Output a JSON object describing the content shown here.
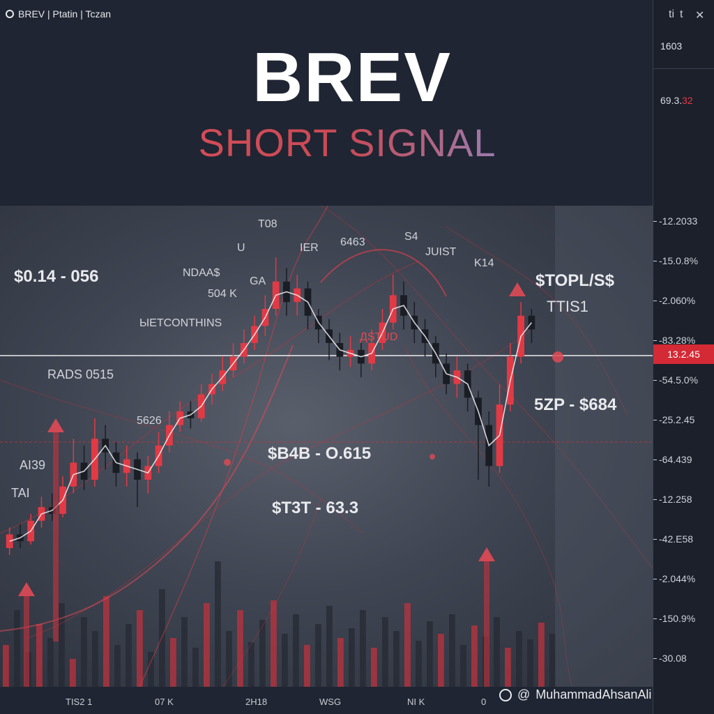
{
  "header": {
    "breadcrumb": "BREV | Ptatin | Tczan",
    "title": "BREV",
    "subtitle": "SHORT SIGNAL"
  },
  "right_panel": {
    "controls": [
      "ti",
      "t",
      "✕"
    ],
    "ticker_value": "1603",
    "ticker_change_prefix": "69.3.",
    "ticker_change_suffix": "32"
  },
  "annotations": {
    "left_range": "$0.14 - 056",
    "stop_label": "$TOPL/S$",
    "stop_sub": "TTIS1",
    "zone_label": "5ZP - $684",
    "mid_label": "$B4B - O.615",
    "low_label": "$T3T - 63.3",
    "rads": "RADS 0515",
    "ndaas": "NDAA$",
    "s04k": "504 K",
    "ga": "GA",
    "metconth": "ЫETCONTHINS",
    "t108": "T08",
    "ier": "IER",
    "g463": "6463",
    "s4": "S4",
    "juist": "JUIST",
    "k14": "K14",
    "s626": "5626",
    "ai39": "AI39",
    "tai": "TAI",
    "red_ds": "ДSTUD",
    "u": "U"
  },
  "price_axis": {
    "ticks": [
      "-12.2033",
      "-15.0.8%",
      "-2.060%",
      "-83.28%",
      "-54.5.0%",
      "-25.2.45",
      "-64.439",
      "-12.258",
      "-42.E58",
      "-2.044%",
      "-150.9%",
      "-30.08"
    ],
    "current": "13.2.45"
  },
  "time_axis": {
    "ticks": [
      "TIS2 1",
      "07 K",
      "2H18",
      "WSG",
      "NI K",
      "0"
    ]
  },
  "watermark": {
    "symbol": "@",
    "author": "MuhammadAhsanAli"
  },
  "colors": {
    "up": "#e23a45",
    "down": "#1a1d24",
    "accent": "#d32a35",
    "background": "#1f2532"
  },
  "chart_data": {
    "type": "candlestick",
    "title": "BREV",
    "subtitle": "SHORT SIGNAL",
    "current_price": "13.2.45",
    "x_labels": [
      "TIS2 1",
      "07 K",
      "2H18",
      "WSG",
      "NI K"
    ],
    "candles": [
      {
        "o": 0.1,
        "c": 0.14,
        "h": 0.16,
        "l": 0.08
      },
      {
        "o": 0.14,
        "c": 0.12,
        "h": 0.17,
        "l": 0.1
      },
      {
        "o": 0.12,
        "c": 0.18,
        "h": 0.2,
        "l": 0.11
      },
      {
        "o": 0.18,
        "c": 0.22,
        "h": 0.25,
        "l": 0.16
      },
      {
        "o": 0.22,
        "c": 0.2,
        "h": 0.26,
        "l": 0.18
      },
      {
        "o": 0.2,
        "c": 0.28,
        "h": 0.31,
        "l": 0.19
      },
      {
        "o": 0.28,
        "c": 0.35,
        "h": 0.42,
        "l": 0.26
      },
      {
        "o": 0.35,
        "c": 0.3,
        "h": 0.4,
        "l": 0.27
      },
      {
        "o": 0.3,
        "c": 0.42,
        "h": 0.48,
        "l": 0.28
      },
      {
        "o": 0.42,
        "c": 0.38,
        "h": 0.46,
        "l": 0.33
      },
      {
        "o": 0.38,
        "c": 0.32,
        "h": 0.41,
        "l": 0.28
      },
      {
        "o": 0.32,
        "c": 0.36,
        "h": 0.4,
        "l": 0.28
      },
      {
        "o": 0.36,
        "c": 0.3,
        "h": 0.38,
        "l": 0.22
      },
      {
        "o": 0.3,
        "c": 0.34,
        "h": 0.37,
        "l": 0.26
      },
      {
        "o": 0.34,
        "c": 0.4,
        "h": 0.44,
        "l": 0.32
      },
      {
        "o": 0.4,
        "c": 0.46,
        "h": 0.5,
        "l": 0.38
      },
      {
        "o": 0.46,
        "c": 0.5,
        "h": 0.53,
        "l": 0.44
      },
      {
        "o": 0.5,
        "c": 0.48,
        "h": 0.53,
        "l": 0.45
      },
      {
        "o": 0.48,
        "c": 0.55,
        "h": 0.58,
        "l": 0.47
      },
      {
        "o": 0.55,
        "c": 0.58,
        "h": 0.61,
        "l": 0.52
      },
      {
        "o": 0.58,
        "c": 0.62,
        "h": 0.66,
        "l": 0.56
      },
      {
        "o": 0.62,
        "c": 0.66,
        "h": 0.7,
        "l": 0.6
      },
      {
        "o": 0.66,
        "c": 0.7,
        "h": 0.74,
        "l": 0.64
      },
      {
        "o": 0.7,
        "c": 0.75,
        "h": 0.78,
        "l": 0.68
      },
      {
        "o": 0.75,
        "c": 0.8,
        "h": 0.84,
        "l": 0.72
      },
      {
        "o": 0.8,
        "c": 0.88,
        "h": 0.95,
        "l": 0.78
      },
      {
        "o": 0.88,
        "c": 0.82,
        "h": 0.92,
        "l": 0.78
      },
      {
        "o": 0.82,
        "c": 0.86,
        "h": 0.9,
        "l": 0.78
      },
      {
        "o": 0.86,
        "c": 0.78,
        "h": 0.88,
        "l": 0.74
      },
      {
        "o": 0.78,
        "c": 0.74,
        "h": 0.8,
        "l": 0.7
      },
      {
        "o": 0.74,
        "c": 0.7,
        "h": 0.77,
        "l": 0.65
      },
      {
        "o": 0.7,
        "c": 0.66,
        "h": 0.73,
        "l": 0.62
      },
      {
        "o": 0.66,
        "c": 0.68,
        "h": 0.72,
        "l": 0.63
      },
      {
        "o": 0.68,
        "c": 0.64,
        "h": 0.7,
        "l": 0.6
      },
      {
        "o": 0.64,
        "c": 0.7,
        "h": 0.74,
        "l": 0.62
      },
      {
        "o": 0.7,
        "c": 0.76,
        "h": 0.8,
        "l": 0.68
      },
      {
        "o": 0.76,
        "c": 0.84,
        "h": 0.9,
        "l": 0.74
      },
      {
        "o": 0.84,
        "c": 0.78,
        "h": 0.88,
        "l": 0.74
      },
      {
        "o": 0.78,
        "c": 0.74,
        "h": 0.82,
        "l": 0.7
      },
      {
        "o": 0.74,
        "c": 0.7,
        "h": 0.77,
        "l": 0.66
      },
      {
        "o": 0.7,
        "c": 0.64,
        "h": 0.72,
        "l": 0.6
      },
      {
        "o": 0.64,
        "c": 0.58,
        "h": 0.67,
        "l": 0.55
      },
      {
        "o": 0.58,
        "c": 0.62,
        "h": 0.66,
        "l": 0.54
      },
      {
        "o": 0.62,
        "c": 0.54,
        "h": 0.64,
        "l": 0.5
      },
      {
        "o": 0.54,
        "c": 0.46,
        "h": 0.56,
        "l": 0.3
      },
      {
        "o": 0.46,
        "c": 0.34,
        "h": 0.5,
        "l": 0.28
      },
      {
        "o": 0.34,
        "c": 0.52,
        "h": 0.58,
        "l": 0.32
      },
      {
        "o": 0.52,
        "c": 0.66,
        "h": 0.7,
        "l": 0.5
      },
      {
        "o": 0.66,
        "c": 0.78,
        "h": 0.82,
        "l": 0.64
      },
      {
        "o": 0.78,
        "c": 0.74,
        "h": 0.8,
        "l": 0.7
      }
    ],
    "volumes": [
      0.3,
      0.55,
      0.25,
      0.45,
      0.35,
      0.6,
      0.2,
      0.5,
      0.4,
      0.65,
      0.3,
      0.45,
      0.55,
      0.25,
      0.7,
      0.35,
      0.5,
      0.28,
      0.6,
      0.9,
      0.4,
      0.55,
      0.32,
      0.48,
      0.62,
      0.38,
      0.52,
      0.3,
      0.45,
      0.58,
      0.35,
      0.42,
      0.55,
      0.28,
      0.5,
      0.4,
      0.6,
      0.33,
      0.47,
      0.38,
      0.52,
      0.3,
      0.44,
      0.36,
      0.5,
      0.28,
      0.4,
      0.34,
      0.46,
      0.38
    ]
  }
}
